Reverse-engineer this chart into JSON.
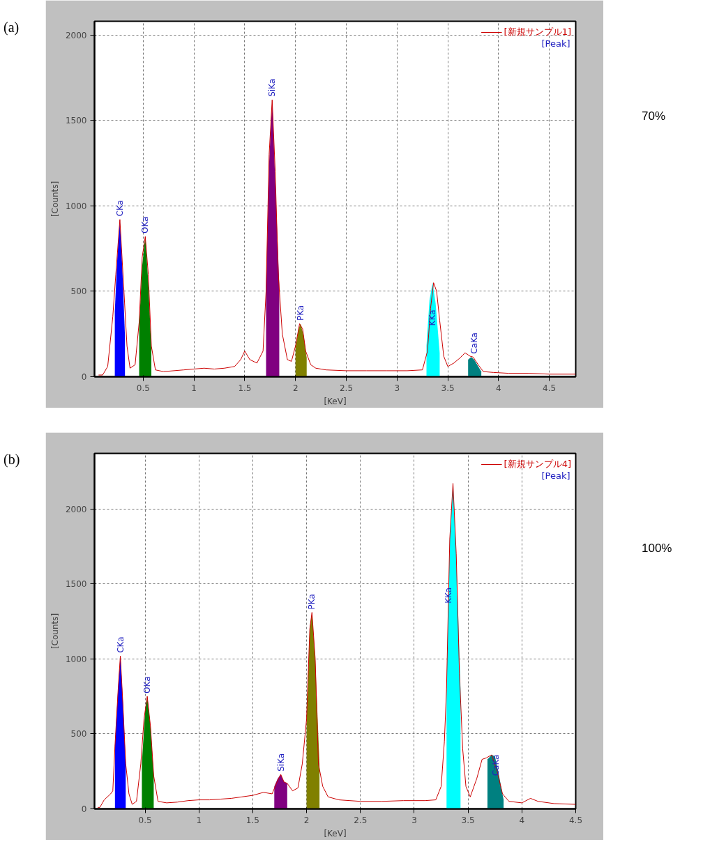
{
  "chart_data": [
    {
      "type": "line",
      "title": "(a)",
      "xlabel": "[KeV]",
      "ylabel": "[Counts]",
      "xlim": [
        0.02,
        4.76
      ],
      "ylim": [
        0,
        2080
      ],
      "xticks": [
        0.5,
        1,
        1.5,
        2,
        2.5,
        3,
        3.5,
        4,
        4.5
      ],
      "yticks": [
        0,
        500,
        1000,
        1500,
        2000
      ],
      "grid": true,
      "legend": "top right",
      "series": [
        {
          "name": "[新規サンプル1]",
          "color": "#cc0000",
          "x": [
            0.06,
            0.1,
            0.15,
            0.2,
            0.23,
            0.27,
            0.31,
            0.34,
            0.37,
            0.42,
            0.46,
            0.49,
            0.52,
            0.55,
            0.58,
            0.62,
            0.7,
            0.8,
            0.9,
            1.0,
            1.1,
            1.2,
            1.3,
            1.4,
            1.46,
            1.5,
            1.55,
            1.62,
            1.68,
            1.71,
            1.74,
            1.77,
            1.8,
            1.83,
            1.87,
            1.92,
            1.96,
            2.0,
            2.04,
            2.07,
            2.1,
            2.15,
            2.2,
            2.3,
            2.5,
            2.7,
            2.9,
            3.1,
            3.25,
            3.3,
            3.33,
            3.36,
            3.39,
            3.42,
            3.46,
            3.5,
            3.56,
            3.62,
            3.67,
            3.72,
            3.75,
            3.8,
            3.85,
            3.95,
            4.1,
            4.3,
            4.5,
            4.76
          ],
          "values": [
            10,
            10,
            60,
            350,
            600,
            920,
            500,
            180,
            50,
            70,
            320,
            700,
            820,
            600,
            180,
            40,
            30,
            35,
            40,
            45,
            50,
            45,
            50,
            60,
            100,
            150,
            100,
            80,
            150,
            500,
            1300,
            1620,
            1200,
            600,
            250,
            100,
            90,
            180,
            310,
            280,
            150,
            70,
            50,
            40,
            35,
            35,
            35,
            35,
            40,
            150,
            400,
            550,
            500,
            330,
            120,
            60,
            80,
            110,
            140,
            120,
            115,
            70,
            30,
            25,
            20,
            20,
            15,
            15
          ]
        },
        {
          "type": "area",
          "color": "#0000ff",
          "x": [
            0.22,
            0.245,
            0.27,
            0.295,
            0.32
          ],
          "values": [
            380,
            700,
            920,
            620,
            240
          ]
        },
        {
          "type": "area",
          "color": "#008000",
          "x": [
            0.46,
            0.49,
            0.52,
            0.55,
            0.58
          ],
          "values": [
            300,
            650,
            820,
            550,
            160
          ]
        },
        {
          "type": "area",
          "color": "#800080",
          "x": [
            1.71,
            1.74,
            1.77,
            1.8,
            1.84
          ],
          "values": [
            520,
            1250,
            1620,
            1150,
            540
          ]
        },
        {
          "type": "area",
          "color": "#808000",
          "x": [
            2.0,
            2.03,
            2.05,
            2.08,
            2.11
          ],
          "values": [
            170,
            280,
            310,
            240,
            110
          ]
        },
        {
          "type": "area",
          "color": "#00ffff",
          "x": [
            3.29,
            3.32,
            3.35,
            3.38,
            3.42
          ],
          "values": [
            180,
            450,
            550,
            430,
            140
          ]
        },
        {
          "type": "area",
          "color": "#008080",
          "x": [
            3.7,
            3.73,
            3.76,
            3.8,
            3.83
          ],
          "values": [
            100,
            115,
            100,
            60,
            30
          ]
        }
      ],
      "annotations": [
        "[Peak]",
        "70%",
        {
          "text": "CKa",
          "x": 0.27,
          "y": 930
        },
        {
          "text": "OKa",
          "x": 0.52,
          "y": 830
        },
        {
          "text": "SiKa",
          "x": 1.77,
          "y": 1630
        },
        {
          "text": "PKa",
          "x": 2.05,
          "y": 320
        },
        {
          "text": "KKa",
          "x": 3.35,
          "y": 290
        },
        {
          "text": "CaKa",
          "x": 3.76,
          "y": 125
        }
      ]
    },
    {
      "type": "line",
      "title": "(b)",
      "xlabel": "[KeV]",
      "ylabel": "[Counts]",
      "xlim": [
        0.03,
        4.5
      ],
      "ylim": [
        0,
        2370
      ],
      "xticks": [
        0.5,
        1,
        1.5,
        2,
        2.5,
        3,
        3.5,
        4,
        4.5
      ],
      "yticks": [
        0,
        500,
        1000,
        1500,
        2000
      ],
      "grid": true,
      "legend": "top right",
      "series": [
        {
          "name": "[新規サンプル4]",
          "color": "#cc0000",
          "x": [
            0.06,
            0.08,
            0.12,
            0.18,
            0.2,
            0.22,
            0.25,
            0.27,
            0.29,
            0.32,
            0.35,
            0.38,
            0.42,
            0.46,
            0.49,
            0.52,
            0.55,
            0.58,
            0.62,
            0.7,
            0.8,
            0.9,
            1.0,
            1.1,
            1.2,
            1.3,
            1.4,
            1.5,
            1.6,
            1.68,
            1.72,
            1.76,
            1.79,
            1.82,
            1.87,
            1.92,
            1.96,
            2.0,
            2.03,
            2.05,
            2.08,
            2.11,
            2.15,
            2.2,
            2.3,
            2.5,
            2.7,
            2.9,
            3.1,
            3.2,
            3.25,
            3.28,
            3.3,
            3.33,
            3.36,
            3.39,
            3.42,
            3.45,
            3.48,
            3.52,
            3.58,
            3.63,
            3.67,
            3.72,
            3.77,
            3.82,
            3.88,
            4.0,
            4.08,
            4.15,
            4.3,
            4.5
          ],
          "values": [
            10,
            10,
            60,
            100,
            120,
            420,
            800,
            1020,
            750,
            300,
            100,
            30,
            50,
            300,
            600,
            750,
            550,
            220,
            50,
            40,
            45,
            55,
            60,
            60,
            65,
            70,
            80,
            90,
            110,
            100,
            170,
            230,
            180,
            170,
            120,
            140,
            300,
            600,
            1200,
            1310,
            1000,
            300,
            150,
            80,
            60,
            50,
            50,
            55,
            55,
            60,
            150,
            450,
            800,
            1800,
            2170,
            1700,
            900,
            400,
            150,
            80,
            200,
            330,
            340,
            360,
            250,
            100,
            50,
            40,
            70,
            50,
            35,
            30
          ]
        },
        {
          "type": "area",
          "color": "#0000ff",
          "x": [
            0.22,
            0.245,
            0.27,
            0.295,
            0.32
          ],
          "values": [
            420,
            750,
            1020,
            700,
            300
          ]
        },
        {
          "type": "area",
          "color": "#008000",
          "x": [
            0.47,
            0.5,
            0.52,
            0.55,
            0.58
          ],
          "values": [
            300,
            650,
            750,
            550,
            220
          ]
        },
        {
          "type": "area",
          "color": "#800080",
          "x": [
            1.7,
            1.73,
            1.76,
            1.79,
            1.82
          ],
          "values": [
            150,
            200,
            230,
            180,
            170
          ]
        },
        {
          "type": "area",
          "color": "#808000",
          "x": [
            2.0,
            2.03,
            2.05,
            2.08,
            2.12
          ],
          "values": [
            600,
            1200,
            1310,
            1000,
            300
          ]
        },
        {
          "type": "area",
          "color": "#00ffff",
          "x": [
            3.3,
            3.33,
            3.36,
            3.39,
            3.43
          ],
          "values": [
            800,
            1800,
            2170,
            1700,
            800
          ]
        },
        {
          "type": "area",
          "color": "#008080",
          "x": [
            3.68,
            3.72,
            3.75,
            3.78,
            3.83
          ],
          "values": [
            330,
            360,
            350,
            250,
            60
          ]
        }
      ],
      "annotations": [
        "[Peak]",
        "100%",
        {
          "text": "CKa",
          "x": 0.27,
          "y": 1030
        },
        {
          "text": "OKa",
          "x": 0.52,
          "y": 760
        },
        {
          "text": "SiKa",
          "x": 1.76,
          "y": 240
        },
        {
          "text": "PKa",
          "x": 2.05,
          "y": 1320
        },
        {
          "text": "KKa",
          "x": 3.317,
          "y": 1360
        },
        {
          "text": "CaKa",
          "x": 3.76,
          "y": 210
        }
      ]
    }
  ]
}
